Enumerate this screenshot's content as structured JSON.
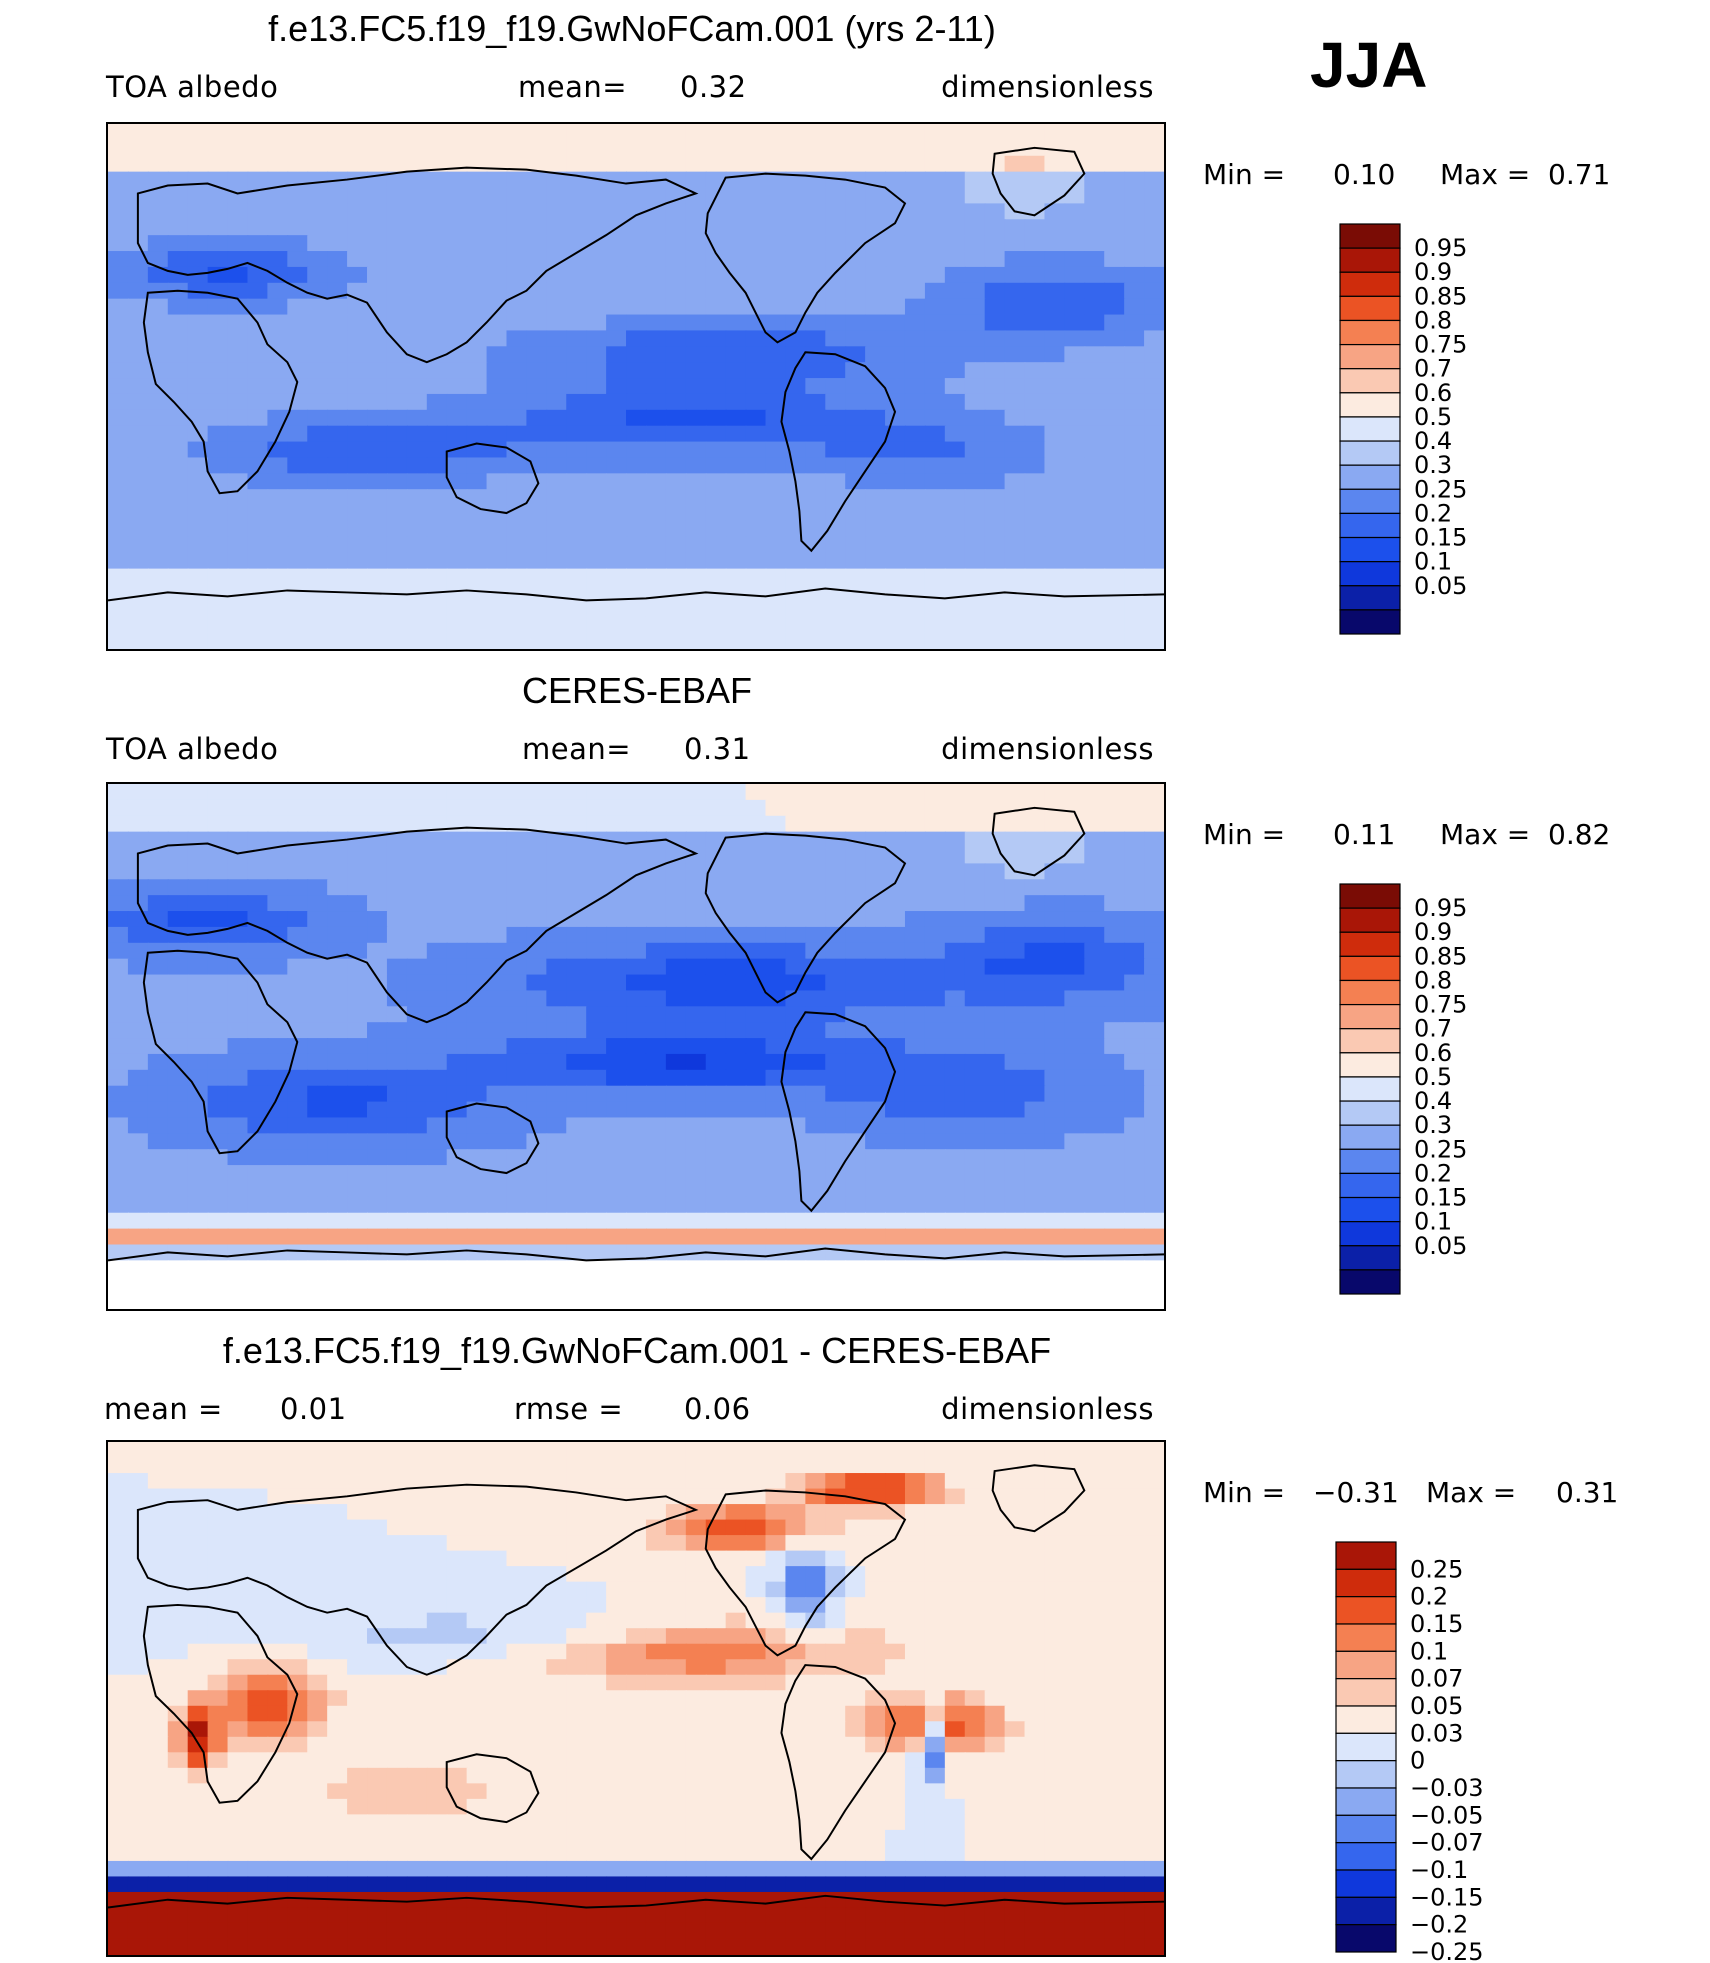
{
  "season": "JJA",
  "colors": {
    "abs": [
      "#08086b",
      "#0b20a8",
      "#0f38dc",
      "#1c50ec",
      "#3566ee",
      "#5b86ef",
      "#8aa9f2",
      "#b4c9f5",
      "#dbe6fb",
      "#fcebe0",
      "#fac9b3",
      "#f7a484",
      "#f48052",
      "#eb5324",
      "#cf2c0c",
      "#a91607",
      "#7a0c05"
    ],
    "diff": [
      "#08086b",
      "#0b20a8",
      "#0f38dc",
      "#3566ee",
      "#5b86ef",
      "#8aa9f2",
      "#b4c9f5",
      "#dbe6fb",
      "#fcebe0",
      "#fac9b3",
      "#f7a484",
      "#f48052",
      "#eb5324",
      "#cf2c0c",
      "#a91607"
    ]
  },
  "panels": [
    {
      "title": "f.e13.FC5.f19_f19.GwNoFCam.001 (yrs 2-11)",
      "left": "TOA  albedo",
      "center_label": "mean=",
      "center_value": "0.32",
      "right": "dimensionless",
      "min_label": "Min  =",
      "min_value": "0.10",
      "max_label": "Max  =",
      "max_value": "0.71",
      "field": "model",
      "levels": [
        "0.95",
        "0.9",
        "0.85",
        "0.8",
        "0.75",
        "0.7",
        "0.6",
        "0.5",
        "0.4",
        "0.3",
        "0.25",
        "0.2",
        "0.15",
        "0.1",
        "0.05"
      ]
    },
    {
      "title": "CERES-EBAF",
      "left": "TOA  albedo",
      "center_label": "mean=",
      "center_value": "0.31",
      "right": "dimensionless",
      "min_label": "Min  =",
      "min_value": "0.11",
      "max_label": "Max  =",
      "max_value": "0.82",
      "field": "obs",
      "levels": [
        "0.95",
        "0.9",
        "0.85",
        "0.8",
        "0.75",
        "0.7",
        "0.6",
        "0.5",
        "0.4",
        "0.3",
        "0.25",
        "0.2",
        "0.15",
        "0.1",
        "0.05"
      ]
    },
    {
      "title": "f.e13.FC5.f19_f19.GwNoFCam.001 - CERES-EBAF",
      "left": "mean  =",
      "left_value": "0.01",
      "center_label": "rmse  =",
      "center_value": "0.06",
      "right": "dimensionless",
      "min_label": "Min  =",
      "min_value": "−0.31",
      "max_label": "Max  =",
      "max_value": "0.31",
      "field": "diff",
      "levels": [
        "0.25",
        "0.2",
        "0.15",
        "0.1",
        "0.07",
        "0.05",
        "0.03",
        "0",
        "−0.03",
        "−0.05",
        "−0.07",
        "−0.1",
        "−0.15",
        "−0.2",
        "−0.25"
      ]
    }
  ]
}
